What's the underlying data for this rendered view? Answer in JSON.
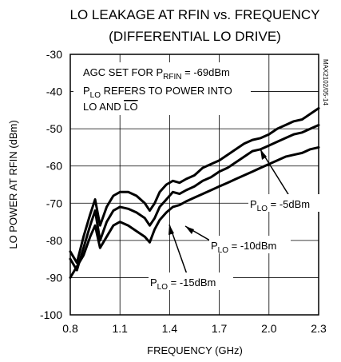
{
  "chart_data": {
    "type": "line",
    "title_line1": "LO LEAKAGE AT RFIN vs. FREQUENCY",
    "title_line2": "(DIFFERENTIAL LO DRIVE)",
    "xlabel": "FREQUENCY (GHz)",
    "ylabel": "LO POWER AT RFIN (dBm)",
    "xlim": [
      0.8,
      2.3
    ],
    "ylim": [
      -100,
      -30
    ],
    "xticks": [
      0.8,
      1.1,
      1.4,
      1.7,
      2.0,
      2.3
    ],
    "xtick_labels": [
      "0.8",
      "1.1",
      "1.4",
      "1.7",
      "2.0",
      "2.3"
    ],
    "yticks": [
      -30,
      -40,
      -50,
      -60,
      -70,
      -80,
      -90,
      -100
    ],
    "ytick_labels": [
      "-30",
      "-40",
      "-50",
      "-60",
      "-70",
      "-80",
      "-90",
      "-100"
    ],
    "grid": true,
    "side_code": "MAX2102/05-14",
    "notes": {
      "line1_prefix": "AGC SET FOR P",
      "line1_sub": "RFIN",
      "line1_suffix": " = -69dBm",
      "line2_prefix": "P",
      "line2_sub": "LO",
      "line2_suffix": " REFERS TO POWER INTO",
      "line3_prefix": "LO AND ",
      "line3_bar": "LO"
    },
    "series": [
      {
        "label_prefix": "P",
        "label_sub": "LO",
        "label_suffix": " = -5dBm",
        "x": [
          0.8,
          0.84,
          0.88,
          0.92,
          0.95,
          0.98,
          1.02,
          1.06,
          1.1,
          1.15,
          1.2,
          1.25,
          1.28,
          1.31,
          1.34,
          1.38,
          1.42,
          1.46,
          1.5,
          1.55,
          1.6,
          1.65,
          1.7,
          1.75,
          1.8,
          1.85,
          1.9,
          1.95,
          2.0,
          2.05,
          2.1,
          2.15,
          2.2,
          2.25,
          2.3
        ],
        "y": [
          -83,
          -86,
          -79,
          -73,
          -69,
          -76,
          -71,
          -68,
          -67,
          -67,
          -68,
          -70,
          -72,
          -70,
          -67,
          -65,
          -64,
          -64.5,
          -63.5,
          -62.5,
          -60.5,
          -59.5,
          -58.5,
          -57,
          -55.5,
          -54,
          -53,
          -52.5,
          -51.5,
          -50,
          -49,
          -48,
          -47.5,
          -46,
          -44.5
        ]
      },
      {
        "label_prefix": "P",
        "label_sub": "LO",
        "label_suffix": " = -10dBm",
        "x": [
          0.8,
          0.84,
          0.88,
          0.92,
          0.95,
          0.98,
          1.02,
          1.06,
          1.1,
          1.15,
          1.2,
          1.25,
          1.28,
          1.31,
          1.34,
          1.38,
          1.42,
          1.46,
          1.5,
          1.55,
          1.6,
          1.65,
          1.7,
          1.75,
          1.8,
          1.85,
          1.9,
          1.95,
          2.0,
          2.05,
          2.1,
          2.15,
          2.2,
          2.25,
          2.3
        ],
        "y": [
          -85,
          -88,
          -82,
          -76,
          -72,
          -80,
          -75,
          -72,
          -71,
          -71.5,
          -72.5,
          -74,
          -76,
          -74,
          -71,
          -69,
          -67,
          -67.5,
          -66.5,
          -65.5,
          -64,
          -63,
          -61.5,
          -60.5,
          -59,
          -57.5,
          -56,
          -55.5,
          -54.5,
          -53.5,
          -52.5,
          -51.5,
          -51,
          -50,
          -49
        ]
      },
      {
        "label_prefix": "P",
        "label_sub": "LO",
        "label_suffix": " = -15dBm",
        "x": [
          0.8,
          0.84,
          0.88,
          0.92,
          0.95,
          0.98,
          1.02,
          1.06,
          1.1,
          1.15,
          1.2,
          1.25,
          1.28,
          1.31,
          1.34,
          1.38,
          1.42,
          1.46,
          1.5,
          1.55,
          1.6,
          1.65,
          1.7,
          1.75,
          1.8,
          1.85,
          1.9,
          1.95,
          2.0,
          2.05,
          2.1,
          2.15,
          2.2,
          2.25,
          2.3
        ],
        "y": [
          -90,
          -87,
          -84,
          -79,
          -76,
          -82,
          -79,
          -76,
          -75,
          -76,
          -77.5,
          -79,
          -80.5,
          -77,
          -74.5,
          -72.5,
          -71,
          -70.5,
          -69.5,
          -68.5,
          -67.5,
          -66.5,
          -65.5,
          -64.5,
          -63.5,
          -62.5,
          -61.5,
          -60.5,
          -59.5,
          -58.5,
          -57.5,
          -57,
          -56.5,
          -55.5,
          -55
        ]
      }
    ]
  }
}
